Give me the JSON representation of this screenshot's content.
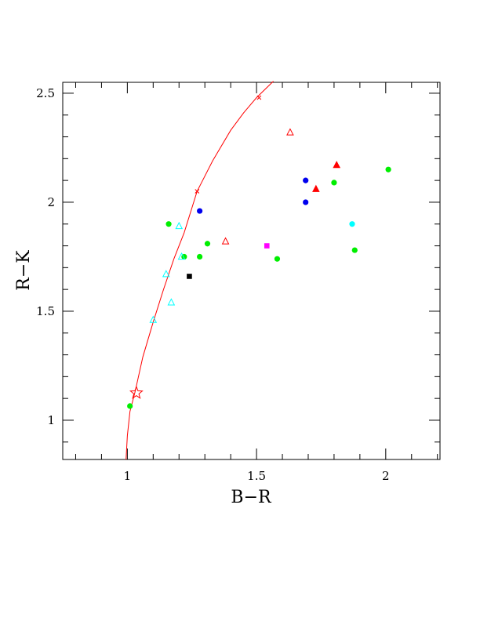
{
  "chart_data": {
    "type": "scatter",
    "title": "",
    "xlabel": "B−R",
    "ylabel": "R−K",
    "xlim": [
      0.75,
      2.21
    ],
    "ylim": [
      0.82,
      2.55
    ],
    "x_ticks": [
      {
        "value": 1,
        "label": "1"
      },
      {
        "value": 1.5,
        "label": "1.5"
      },
      {
        "value": 2,
        "label": "2"
      }
    ],
    "y_ticks": [
      {
        "value": 1,
        "label": "1"
      },
      {
        "value": 1.5,
        "label": "1.5"
      },
      {
        "value": 2,
        "label": "2"
      },
      {
        "value": 2.5,
        "label": "2.5"
      }
    ],
    "grid": false,
    "curve": {
      "color": "#ff0000",
      "points": [
        [
          0.995,
          0.82
        ],
        [
          1.0,
          0.93
        ],
        [
          1.01,
          1.04
        ],
        [
          1.03,
          1.13
        ],
        [
          1.06,
          1.29
        ],
        [
          1.1,
          1.45
        ],
        [
          1.14,
          1.6
        ],
        [
          1.18,
          1.74
        ],
        [
          1.22,
          1.86
        ],
        [
          1.27,
          2.05
        ],
        [
          1.33,
          2.19
        ],
        [
          1.4,
          2.33
        ],
        [
          1.45,
          2.41
        ],
        [
          1.5,
          2.48
        ],
        [
          1.565,
          2.555
        ]
      ],
      "markers": [
        [
          1.27,
          2.05
        ],
        [
          1.51,
          2.48
        ]
      ]
    },
    "star": {
      "x": 1.035,
      "y": 1.125,
      "color": "#ff0000"
    },
    "series": [
      {
        "marker": "circle",
        "color": "#00ee00",
        "points": [
          [
            1.16,
            1.9
          ],
          [
            1.22,
            1.75
          ],
          [
            1.28,
            1.75
          ],
          [
            1.31,
            1.81
          ],
          [
            1.58,
            1.74
          ],
          [
            1.8,
            2.09
          ],
          [
            1.88,
            1.78
          ],
          [
            2.01,
            2.15
          ],
          [
            1.01,
            1.065
          ]
        ]
      },
      {
        "marker": "circle",
        "color": "#0000ee",
        "points": [
          [
            1.28,
            1.96
          ],
          [
            1.69,
            2.1
          ],
          [
            1.69,
            2.0
          ]
        ]
      },
      {
        "marker": "circle",
        "color": "#00ffff",
        "points": [
          [
            1.87,
            1.9
          ]
        ]
      },
      {
        "marker": "square",
        "color": "#ff00ff",
        "points": [
          [
            1.54,
            1.8
          ]
        ]
      },
      {
        "marker": "square",
        "color": "#000000",
        "points": [
          [
            1.24,
            1.66
          ]
        ]
      },
      {
        "marker": "filled-triangle",
        "color": "#ff0000",
        "points": [
          [
            1.73,
            2.06
          ],
          [
            1.81,
            2.17
          ]
        ]
      },
      {
        "marker": "open-triangle",
        "color": "#ff0000",
        "points": [
          [
            1.38,
            1.82
          ],
          [
            1.63,
            2.32
          ]
        ]
      },
      {
        "marker": "open-triangle",
        "color": "#00ffff",
        "points": [
          [
            1.2,
            1.89
          ],
          [
            1.15,
            1.67
          ],
          [
            1.21,
            1.75
          ],
          [
            1.17,
            1.54
          ],
          [
            1.1,
            1.46
          ]
        ]
      }
    ]
  }
}
